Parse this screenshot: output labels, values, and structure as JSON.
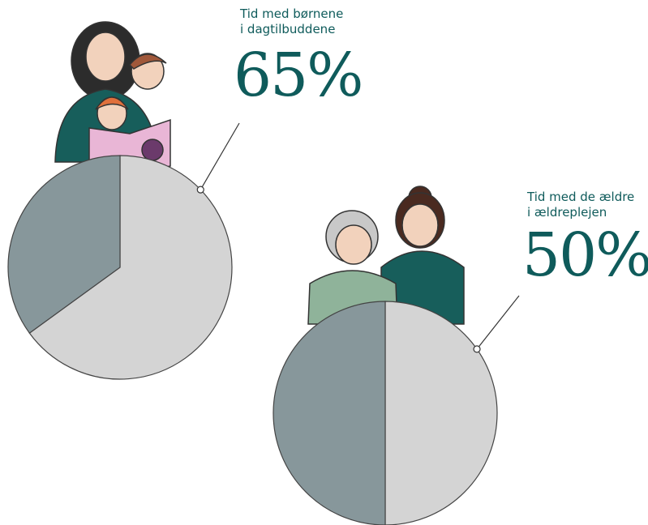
{
  "chart_data": [
    {
      "type": "pie",
      "categories": [
        "Tid med børnene\ni dagtilbuddene",
        null
      ],
      "values": [
        65,
        35
      ],
      "value_labels": [
        "65%",
        null
      ],
      "colors": [
        "#d4d4d4",
        "#87979b"
      ]
    },
    {
      "type": "pie",
      "categories": [
        "Tid med de ældre\ni ældreplejen",
        null
      ],
      "values": [
        50,
        50
      ],
      "value_labels": [
        "50%",
        null
      ],
      "colors": [
        "#d4d4d4",
        "#87979b"
      ]
    }
  ]
}
